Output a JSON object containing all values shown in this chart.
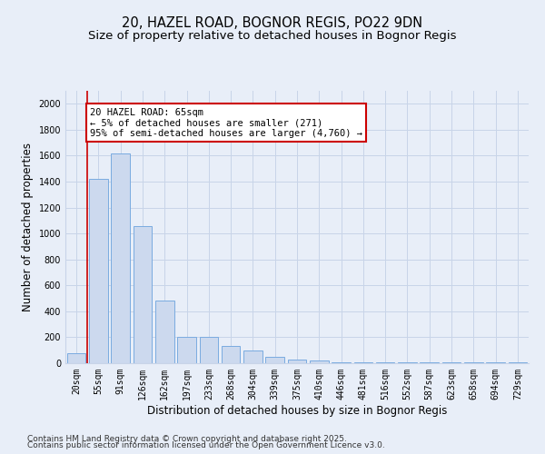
{
  "title_line1": "20, HAZEL ROAD, BOGNOR REGIS, PO22 9DN",
  "title_line2": "Size of property relative to detached houses in Bognor Regis",
  "xlabel": "Distribution of detached houses by size in Bognor Regis",
  "ylabel": "Number of detached properties",
  "categories": [
    "20sqm",
    "55sqm",
    "91sqm",
    "126sqm",
    "162sqm",
    "197sqm",
    "233sqm",
    "268sqm",
    "304sqm",
    "339sqm",
    "375sqm",
    "410sqm",
    "446sqm",
    "481sqm",
    "516sqm",
    "552sqm",
    "587sqm",
    "623sqm",
    "658sqm",
    "694sqm",
    "729sqm"
  ],
  "bar_heights": [
    80,
    1420,
    1620,
    1060,
    480,
    200,
    200,
    130,
    100,
    50,
    30,
    20,
    5,
    5,
    5,
    5,
    5,
    5,
    5,
    5,
    5
  ],
  "bar_color": "#ccd9ee",
  "bar_edge_color": "#7aabe0",
  "annotation_text": "20 HAZEL ROAD: 65sqm\n← 5% of detached houses are smaller (271)\n95% of semi-detached houses are larger (4,760) →",
  "annotation_box_color": "#ffffff",
  "annotation_box_edge_color": "#cc0000",
  "vline_color": "#cc0000",
  "ylim": [
    0,
    2100
  ],
  "yticks": [
    0,
    200,
    400,
    600,
    800,
    1000,
    1200,
    1400,
    1600,
    1800,
    2000
  ],
  "background_color": "#e8eef8",
  "plot_background_color": "#e8eef8",
  "footer_line1": "Contains HM Land Registry data © Crown copyright and database right 2025.",
  "footer_line2": "Contains public sector information licensed under the Open Government Licence v3.0.",
  "title_fontsize": 10.5,
  "subtitle_fontsize": 9.5,
  "tick_fontsize": 7,
  "label_fontsize": 8.5,
  "footer_fontsize": 6.5,
  "grid_color": "#c8d4e8",
  "annot_fontsize": 7.5
}
